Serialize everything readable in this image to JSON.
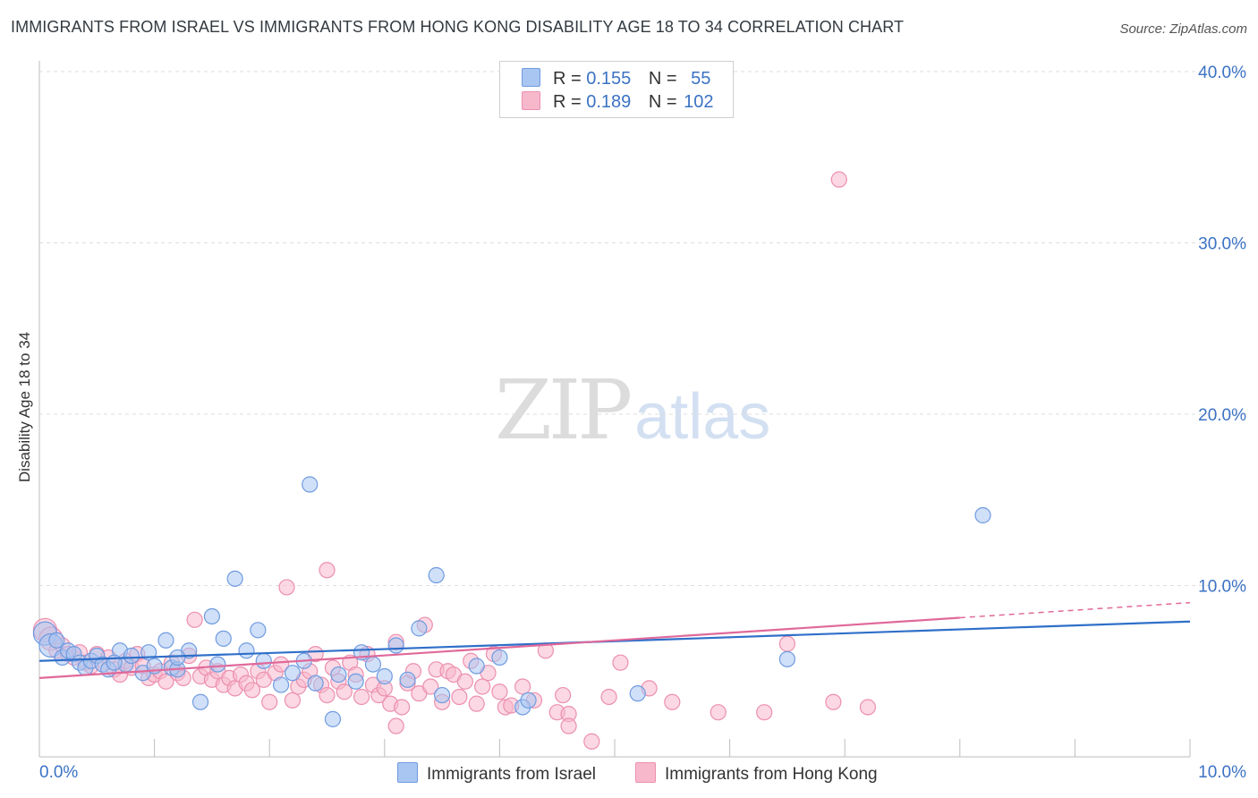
{
  "header": {
    "title": "IMMIGRANTS FROM ISRAEL VS IMMIGRANTS FROM HONG KONG DISABILITY AGE 18 TO 34 CORRELATION CHART",
    "source": "Source: ZipAtlas.com"
  },
  "watermark": {
    "zip": "ZIP",
    "atlas": "atlas"
  },
  "legend": {
    "r_label": "R =",
    "n_label": "N =",
    "rows": [
      {
        "r": "0.155",
        "n": "55",
        "color": "#a9c6f2"
      },
      {
        "r": "0.189",
        "n": "102",
        "color": "#f7b8cc"
      }
    ]
  },
  "colors": {
    "israel_fill": "#a9c6f2",
    "israel_stroke": "#6f9be0",
    "israel_line": "#2f6fc9",
    "hk_fill": "#f7b8cc",
    "hk_stroke": "#ec8fae",
    "hk_line": "#e0699a",
    "grid": "#dedede",
    "axis_tick_text": "#3b72c4"
  },
  "chart_data": {
    "type": "scatter",
    "ylabel": "Disability Age 18 to 34",
    "xlim": [
      0,
      10
    ],
    "ylim": [
      0,
      40
    ],
    "x_tick_labels": [
      "0.0%",
      "10.0%"
    ],
    "y_ticks": [
      10,
      20,
      30,
      40
    ],
    "y_tick_labels": [
      "10.0%",
      "20.0%",
      "30.0%",
      "40.0%"
    ],
    "series": [
      {
        "name": "Immigrants from Israel",
        "trend": {
          "x": [
            0,
            10
          ],
          "y": [
            5.6,
            7.9
          ],
          "dashed_from": null
        },
        "points": [
          [
            0.05,
            7.2
          ],
          [
            0.1,
            6.5
          ],
          [
            0.15,
            6.8
          ],
          [
            0.2,
            5.8
          ],
          [
            0.25,
            6.2
          ],
          [
            0.3,
            6.0
          ],
          [
            0.35,
            5.5
          ],
          [
            0.4,
            5.2
          ],
          [
            0.45,
            5.6
          ],
          [
            0.5,
            5.9
          ],
          [
            0.55,
            5.4
          ],
          [
            0.6,
            5.1
          ],
          [
            0.7,
            6.2
          ],
          [
            0.75,
            5.4
          ],
          [
            0.8,
            5.9
          ],
          [
            0.9,
            4.9
          ],
          [
            0.95,
            6.1
          ],
          [
            1.0,
            5.3
          ],
          [
            1.1,
            6.8
          ],
          [
            1.15,
            5.2
          ],
          [
            1.2,
            5.1
          ],
          [
            1.3,
            6.2
          ],
          [
            1.4,
            3.2
          ],
          [
            1.5,
            8.2
          ],
          [
            1.6,
            6.9
          ],
          [
            1.55,
            5.4
          ],
          [
            1.7,
            10.4
          ],
          [
            1.8,
            6.2
          ],
          [
            1.9,
            7.4
          ],
          [
            1.95,
            5.6
          ],
          [
            2.1,
            4.2
          ],
          [
            2.2,
            4.9
          ],
          [
            2.3,
            5.6
          ],
          [
            2.4,
            4.3
          ],
          [
            2.35,
            15.9
          ],
          [
            2.6,
            4.8
          ],
          [
            2.55,
            2.2
          ],
          [
            2.8,
            6.1
          ],
          [
            2.75,
            4.4
          ],
          [
            2.9,
            5.4
          ],
          [
            3.0,
            4.7
          ],
          [
            3.1,
            6.5
          ],
          [
            3.2,
            4.5
          ],
          [
            3.3,
            7.5
          ],
          [
            3.45,
            10.6
          ],
          [
            3.5,
            3.6
          ],
          [
            3.8,
            5.3
          ],
          [
            4.0,
            5.8
          ],
          [
            4.2,
            2.9
          ],
          [
            4.25,
            3.3
          ],
          [
            5.2,
            3.7
          ],
          [
            6.5,
            5.7
          ],
          [
            8.2,
            14.1
          ],
          [
            1.2,
            5.8
          ],
          [
            0.65,
            5.5
          ]
        ]
      },
      {
        "name": "Immigrants from Hong Kong",
        "trend": {
          "x": [
            0,
            10
          ],
          "y": [
            4.6,
            9.0
          ],
          "dashed_from": 8
        },
        "points": [
          [
            0.05,
            7.4
          ],
          [
            0.1,
            6.9
          ],
          [
            0.15,
            6.2
          ],
          [
            0.2,
            6.5
          ],
          [
            0.25,
            6.0
          ],
          [
            0.3,
            5.8
          ],
          [
            0.35,
            6.1
          ],
          [
            0.4,
            5.5
          ],
          [
            0.45,
            5.3
          ],
          [
            0.5,
            6.0
          ],
          [
            0.55,
            5.4
          ],
          [
            0.6,
            5.8
          ],
          [
            0.65,
            5.1
          ],
          [
            0.7,
            4.8
          ],
          [
            0.75,
            5.6
          ],
          [
            0.8,
            5.2
          ],
          [
            0.85,
            6.0
          ],
          [
            0.9,
            5.3
          ],
          [
            0.95,
            4.6
          ],
          [
            1.0,
            4.8
          ],
          [
            1.05,
            5.0
          ],
          [
            1.1,
            4.4
          ],
          [
            1.15,
            5.5
          ],
          [
            1.2,
            4.9
          ],
          [
            1.25,
            4.6
          ],
          [
            1.3,
            5.9
          ],
          [
            1.35,
            8.0
          ],
          [
            1.4,
            4.7
          ],
          [
            1.45,
            5.2
          ],
          [
            1.5,
            4.5
          ],
          [
            1.55,
            5.0
          ],
          [
            1.6,
            4.2
          ],
          [
            1.65,
            4.6
          ],
          [
            1.7,
            4.0
          ],
          [
            1.75,
            4.8
          ],
          [
            1.8,
            4.3
          ],
          [
            1.85,
            3.9
          ],
          [
            1.9,
            5.0
          ],
          [
            1.95,
            4.5
          ],
          [
            2.0,
            3.2
          ],
          [
            2.05,
            4.9
          ],
          [
            2.1,
            5.4
          ],
          [
            2.15,
            9.9
          ],
          [
            2.2,
            3.3
          ],
          [
            2.25,
            4.1
          ],
          [
            2.3,
            4.5
          ],
          [
            2.35,
            5.0
          ],
          [
            2.4,
            6.0
          ],
          [
            2.45,
            4.2
          ],
          [
            2.5,
            3.6
          ],
          [
            2.55,
            5.2
          ],
          [
            2.6,
            4.4
          ],
          [
            2.65,
            3.8
          ],
          [
            2.7,
            5.5
          ],
          [
            2.75,
            4.8
          ],
          [
            2.8,
            3.5
          ],
          [
            2.85,
            6.0
          ],
          [
            2.9,
            4.2
          ],
          [
            2.95,
            3.6
          ],
          [
            3.0,
            4.0
          ],
          [
            3.05,
            3.1
          ],
          [
            3.1,
            6.7
          ],
          [
            3.15,
            2.9
          ],
          [
            3.2,
            4.3
          ],
          [
            3.25,
            5.0
          ],
          [
            3.3,
            3.7
          ],
          [
            3.35,
            7.7
          ],
          [
            3.4,
            4.1
          ],
          [
            3.45,
            5.1
          ],
          [
            3.5,
            3.2
          ],
          [
            3.55,
            5.0
          ],
          [
            3.6,
            4.8
          ],
          [
            3.65,
            3.5
          ],
          [
            3.7,
            4.4
          ],
          [
            3.75,
            5.6
          ],
          [
            3.8,
            3.1
          ],
          [
            3.85,
            4.1
          ],
          [
            3.9,
            4.9
          ],
          [
            3.95,
            6.0
          ],
          [
            4.0,
            3.8
          ],
          [
            4.05,
            2.9
          ],
          [
            4.1,
            3.0
          ],
          [
            4.2,
            4.1
          ],
          [
            4.3,
            3.3
          ],
          [
            4.4,
            6.2
          ],
          [
            4.5,
            2.6
          ],
          [
            4.55,
            3.6
          ],
          [
            4.6,
            2.5
          ],
          [
            4.8,
            0.9
          ],
          [
            4.95,
            3.5
          ],
          [
            5.05,
            5.5
          ],
          [
            5.3,
            4.0
          ],
          [
            5.5,
            3.2
          ],
          [
            6.3,
            2.6
          ],
          [
            6.5,
            6.6
          ],
          [
            6.9,
            3.2
          ],
          [
            2.5,
            10.9
          ],
          [
            3.1,
            1.8
          ],
          [
            4.6,
            1.8
          ],
          [
            5.9,
            2.6
          ],
          [
            7.2,
            2.9
          ],
          [
            6.95,
            33.7
          ]
        ]
      }
    ]
  }
}
